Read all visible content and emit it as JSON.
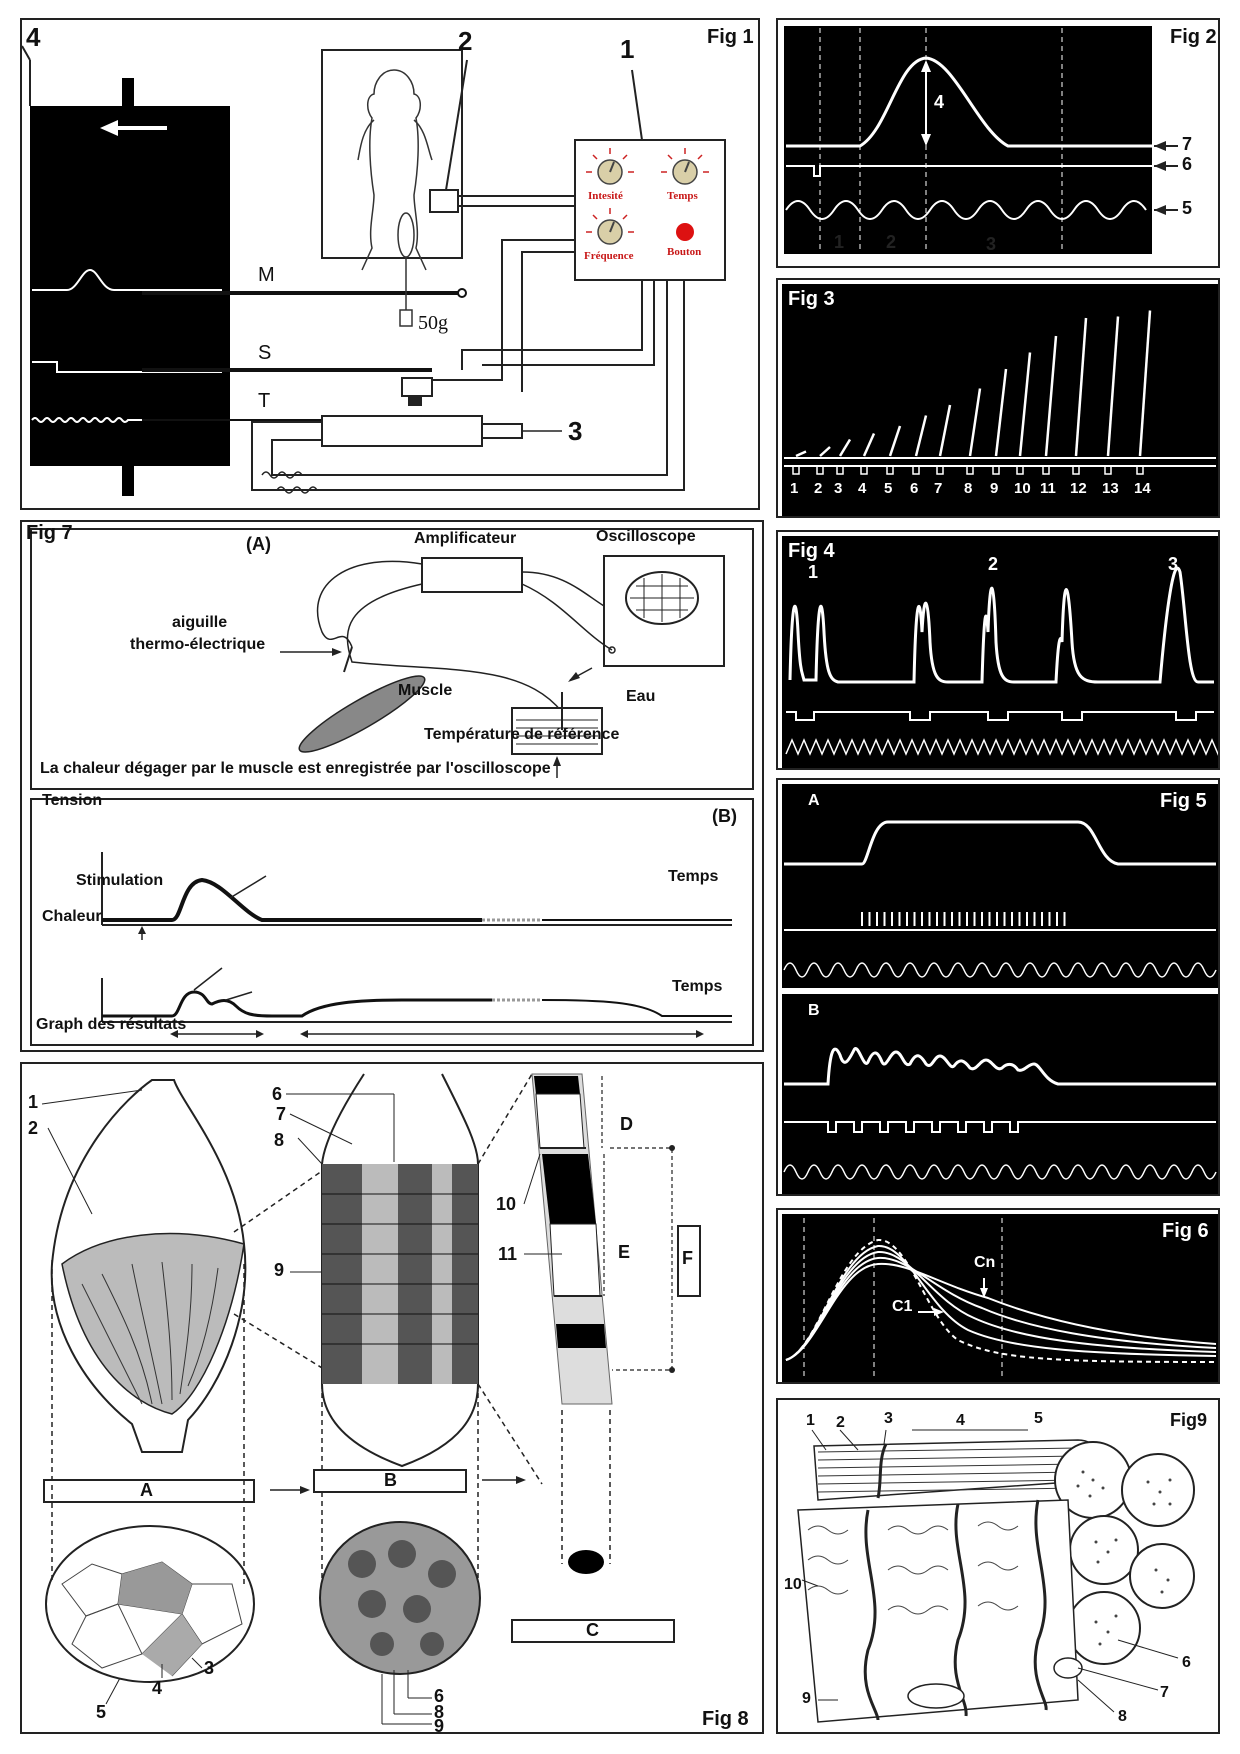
{
  "fig1": {
    "tag": "Fig 1",
    "n1": "1",
    "n2": "2",
    "n3": "3",
    "n4": "4",
    "M": "M",
    "S": "S",
    "T": "T",
    "weight": "50g",
    "knobs": {
      "intensite": "Intesité",
      "temps": "Temps",
      "frequence": "Fréquence",
      "bouton": "Bouton"
    },
    "colors": {
      "knob_ray": "#cc2222",
      "bouton": "#dd1111",
      "knob_label": "#c81818"
    }
  },
  "fig2": {
    "tag": "Fig 2",
    "labels": [
      "1",
      "2",
      "3",
      "4",
      "5",
      "6",
      "7"
    ]
  },
  "fig3": {
    "tag": "Fig 3",
    "numbers": [
      "1",
      "2",
      "3",
      "4",
      "5",
      "6",
      "7",
      "8",
      "9",
      "10",
      "11",
      "12",
      "13",
      "14"
    ],
    "heights": [
      0.03,
      0.06,
      0.11,
      0.15,
      0.2,
      0.27,
      0.34,
      0.45,
      0.58,
      0.69,
      0.8,
      0.92,
      0.93,
      0.97
    ]
  },
  "fig4": {
    "tag": "Fig 4",
    "labels": [
      "1",
      "2",
      "3"
    ]
  },
  "fig5": {
    "tag": "Fig 5",
    "A": "A",
    "B": "B"
  },
  "fig6": {
    "tag": "Fig 6",
    "cn": "Cn",
    "c1": "C1"
  },
  "fig7": {
    "tag": "Fig 7",
    "A": "(A)",
    "B": "(B)",
    "amplificateur": "Amplificateur",
    "oscilloscope": "Oscilloscope",
    "aiguille1": "aiguille",
    "aiguille2": "thermo-électrique",
    "muscle": "Muscle",
    "eau": "Eau",
    "temp_ref": "Température de référence",
    "caption": "La chaleur dégager par le muscle est enregistrée par l'oscilloscope",
    "tension": "Tension",
    "stimulation": "Stimulation",
    "temps1": "Temps",
    "chaleur": "Chaleur",
    "temps2": "Temps",
    "graph": "Graph des résultats"
  },
  "fig8": {
    "tag": "Fig 8",
    "A": "A",
    "B": "B",
    "C": "C",
    "D": "D",
    "E": "E",
    "F": "F",
    "nums": {
      "n1": "1",
      "n2": "2",
      "n3": "3",
      "n4": "4",
      "n5": "5",
      "n6": "6",
      "n7": "7",
      "n8": "8",
      "n9": "9",
      "n10": "10",
      "n11": "11",
      "n6b": "6",
      "n8b": "8",
      "n9b": "9"
    }
  },
  "fig9": {
    "tag": "Fig9",
    "nums": {
      "n1": "1",
      "n2": "2",
      "n3": "3",
      "n4": "4",
      "n5": "5",
      "n6": "6",
      "n7": "7",
      "n8": "8",
      "n9": "9",
      "n10": "10"
    }
  }
}
